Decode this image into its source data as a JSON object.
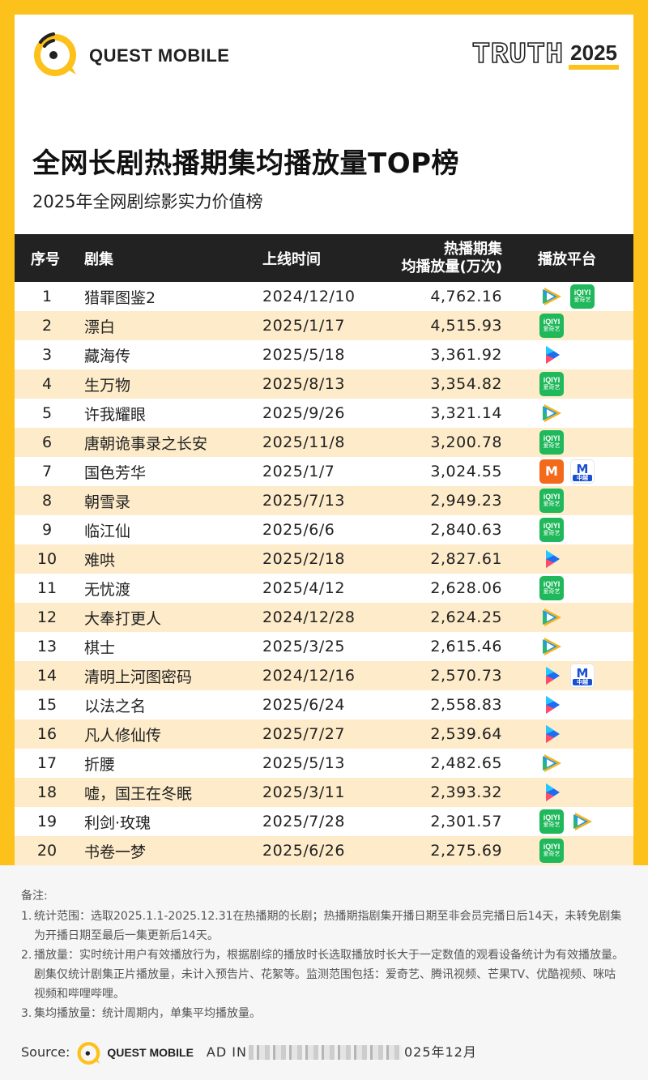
{
  "brand": {
    "logo_text": "QUEST MOBILE",
    "truth_word": "TRUTH",
    "truth_year": "2025"
  },
  "title": "全网长剧热播期集均播放量TOP榜",
  "subtitle": "2025年全网剧综影实力价值榜",
  "table": {
    "headers": {
      "rank": "序号",
      "name": "剧集",
      "date": "上线时间",
      "views_line1": "热播期集",
      "views_line2": "均播放量(万次)",
      "platform": "播放平台"
    },
    "rows": [
      {
        "rank": "1",
        "name": "猎罪图鉴2",
        "date": "2024/12/10",
        "views": "4,762.16",
        "platforms": [
          "tencent",
          "iqiyi"
        ]
      },
      {
        "rank": "2",
        "name": "漂白",
        "date": "2025/1/17",
        "views": "4,515.93",
        "platforms": [
          "iqiyi"
        ]
      },
      {
        "rank": "3",
        "name": "藏海传",
        "date": "2025/5/18",
        "views": "3,361.92",
        "platforms": [
          "youku"
        ]
      },
      {
        "rank": "4",
        "name": "生万物",
        "date": "2025/8/13",
        "views": "3,354.82",
        "platforms": [
          "iqiyi"
        ]
      },
      {
        "rank": "5",
        "name": "许我耀眼",
        "date": "2025/9/26",
        "views": "3,321.14",
        "platforms": [
          "tencent"
        ]
      },
      {
        "rank": "6",
        "name": "唐朝诡事录之长安",
        "date": "2025/11/8",
        "views": "3,200.78",
        "platforms": [
          "iqiyi"
        ]
      },
      {
        "rank": "7",
        "name": "国色芳华",
        "date": "2025/1/7",
        "views": "3,024.55",
        "platforms": [
          "mango",
          "cctv"
        ]
      },
      {
        "rank": "8",
        "name": "朝雪录",
        "date": "2025/7/13",
        "views": "2,949.23",
        "platforms": [
          "iqiyi"
        ]
      },
      {
        "rank": "9",
        "name": "临江仙",
        "date": "2025/6/6",
        "views": "2,840.63",
        "platforms": [
          "iqiyi"
        ]
      },
      {
        "rank": "10",
        "name": "难哄",
        "date": "2025/2/18",
        "views": "2,827.61",
        "platforms": [
          "youku"
        ]
      },
      {
        "rank": "11",
        "name": "无忧渡",
        "date": "2025/4/12",
        "views": "2,628.06",
        "platforms": [
          "iqiyi"
        ]
      },
      {
        "rank": "12",
        "name": "大奉打更人",
        "date": "2024/12/28",
        "views": "2,624.25",
        "platforms": [
          "tencent"
        ]
      },
      {
        "rank": "13",
        "name": "棋士",
        "date": "2025/3/25",
        "views": "2,615.46",
        "platforms": [
          "tencent"
        ]
      },
      {
        "rank": "14",
        "name": "清明上河图密码",
        "date": "2024/12/16",
        "views": "2,570.73",
        "platforms": [
          "youku",
          "cctv"
        ]
      },
      {
        "rank": "15",
        "name": "以法之名",
        "date": "2025/6/24",
        "views": "2,558.83",
        "platforms": [
          "youku"
        ]
      },
      {
        "rank": "16",
        "name": "凡人修仙传",
        "date": "2025/7/27",
        "views": "2,539.64",
        "platforms": [
          "youku"
        ]
      },
      {
        "rank": "17",
        "name": "折腰",
        "date": "2025/5/13",
        "views": "2,482.65",
        "platforms": [
          "tencent"
        ]
      },
      {
        "rank": "18",
        "name": "嘘，国王在冬眠",
        "date": "2025/3/11",
        "views": "2,393.32",
        "platforms": [
          "youku"
        ]
      },
      {
        "rank": "19",
        "name": "利剑·玫瑰",
        "date": "2025/7/28",
        "views": "2,301.57",
        "platforms": [
          "iqiyi",
          "tencent"
        ]
      },
      {
        "rank": "20",
        "name": "书卷一梦",
        "date": "2025/6/26",
        "views": "2,275.69",
        "platforms": [
          "iqiyi"
        ]
      }
    ]
  },
  "platform_badges": {
    "iqiyi": {
      "top": "iQIYI",
      "bottom": "爱奇艺",
      "color": "#1fb85a"
    },
    "mango": {
      "glyph": "M",
      "color": "#f36a1c"
    },
    "cctv": {
      "glyph": "M",
      "bottom": "中越",
      "color": "#1a4fd3"
    },
    "tencent_colors": [
      "#2bb673",
      "#1e9bf0",
      "#f6b21b"
    ],
    "youku_colors": [
      "#1e6cf0",
      "#ff4b6a",
      "#26c6ff"
    ]
  },
  "notes": {
    "title": "备注:",
    "items": [
      {
        "num": "1.",
        "text": "统计范围：选取2025.1.1-2025.12.31在热播期的长剧；热播期指剧集开播日期至非会员完播日后14天，未转免剧集为开播日期至最后一集更新后14天。"
      },
      {
        "num": "2.",
        "text": "播放量：实时统计用户有效播放行为，根据剧综的播放时长选取播放时长大于一定数值的观看设备统计为有效播放量。剧集仅统计剧集正片播放量，未计入预告片、花絮等。监测范围包括：爱奇艺、腾讯视频、芒果TV、优酷视频、咪咕视频和哔哩哔哩。"
      },
      {
        "num": "3.",
        "text": "集均播放量：统计周期内，单集平均播放量。"
      }
    ]
  },
  "source": {
    "label": "Source:",
    "logo_text": "QUEST MOBILE",
    "value_prefix": "AD IN",
    "value_suffix": "025年12月"
  },
  "colors": {
    "accent": "#fcc21b",
    "header_bg": "#222222",
    "alt_row": "#fdebc9"
  }
}
